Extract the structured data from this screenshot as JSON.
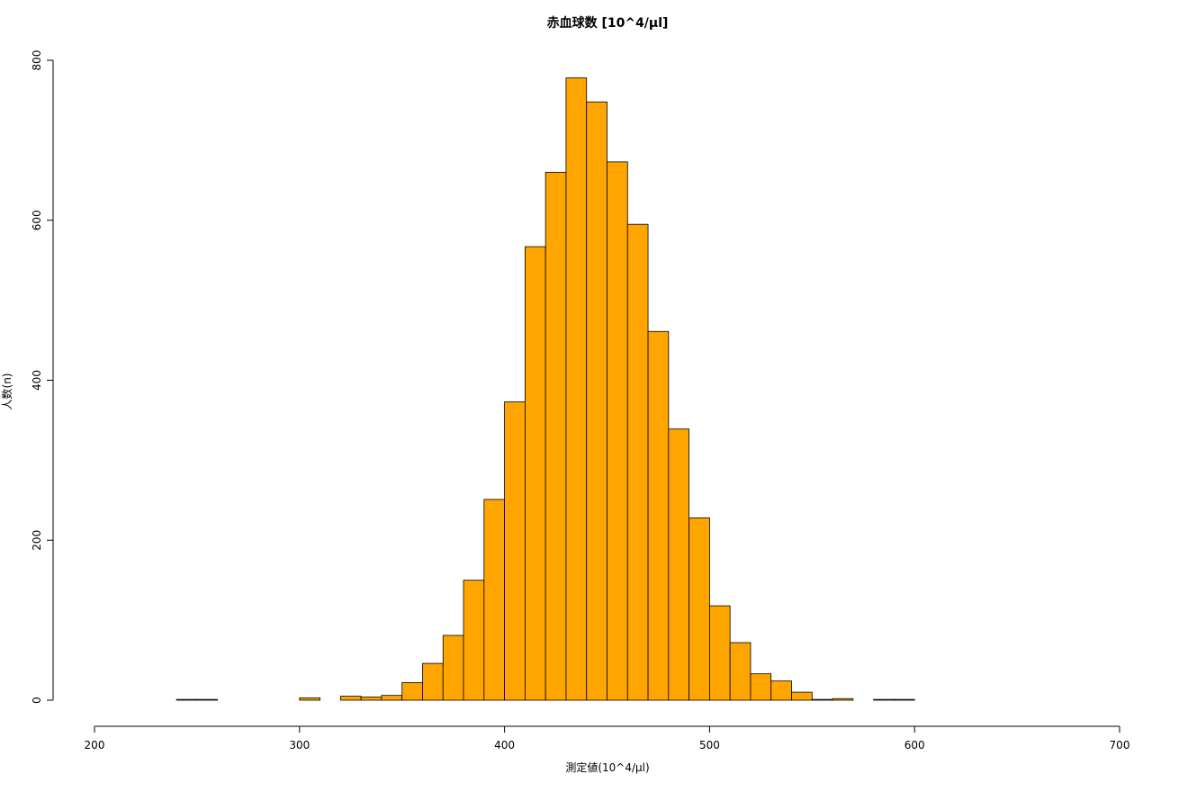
{
  "chart_data": {
    "type": "histogram",
    "title": "赤血球数 [10^4/μl]",
    "x_label": "測定値(10^4/μl)",
    "y_label": "人数(n)",
    "color": "#ffa500",
    "bins": [
      240,
      250,
      260,
      270,
      280,
      290,
      300,
      310,
      320,
      330,
      340,
      350,
      360,
      370,
      380,
      390,
      400,
      410,
      420,
      430,
      440,
      450,
      460,
      470,
      480,
      490,
      500,
      510,
      520,
      530,
      540,
      550,
      560,
      570,
      580,
      590,
      600,
      610,
      620,
      630,
      640,
      650,
      660,
      670,
      680,
      690,
      700,
      710,
      720
    ],
    "values": [
      1,
      1,
      0,
      0,
      0,
      0,
      3,
      0,
      5,
      4,
      6,
      22,
      46,
      81,
      150,
      251,
      373,
      567,
      660,
      778,
      748,
      673,
      595,
      461,
      339,
      228,
      118,
      72,
      33,
      24,
      10,
      1,
      2,
      0,
      1,
      1,
      0,
      0,
      0,
      0,
      0,
      0,
      0,
      0,
      0,
      0,
      0,
      0
    ],
    "xlim": [
      200,
      700
    ],
    "xticks": [
      200,
      300,
      400,
      500,
      600,
      700
    ],
    "ylim": [
      0,
      800
    ],
    "yticks": [
      0,
      200,
      400,
      600,
      800
    ]
  }
}
